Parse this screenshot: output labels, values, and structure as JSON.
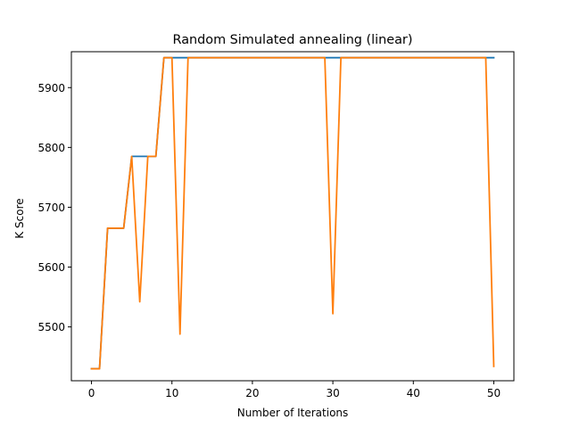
{
  "chart_data": {
    "type": "line",
    "title": "Random Simulated annealing (linear)",
    "xlabel": "Number of Iterations",
    "ylabel": "K Score",
    "xlim": [
      -2.5,
      52.5
    ],
    "ylim": [
      5410,
      5960
    ],
    "xticks": [
      0,
      10,
      20,
      30,
      40,
      50
    ],
    "yticks": [
      5500,
      5600,
      5700,
      5800,
      5900
    ],
    "grid": false,
    "legend": "none",
    "series": [
      {
        "color": "#1f77b4",
        "x": [
          0,
          1,
          2,
          3,
          4,
          5,
          6,
          7,
          8,
          9,
          10,
          11,
          12,
          13,
          14,
          15,
          16,
          17,
          18,
          19,
          20,
          21,
          22,
          23,
          24,
          25,
          26,
          27,
          28,
          29,
          30,
          31,
          32,
          33,
          34,
          35,
          36,
          37,
          38,
          39,
          40,
          41,
          42,
          43,
          44,
          45,
          46,
          47,
          48,
          49,
          50
        ],
        "y": [
          5430,
          5430,
          5665,
          5665,
          5665,
          5785,
          5785,
          5785,
          5785,
          5950,
          5950,
          5950,
          5950,
          5950,
          5950,
          5950,
          5950,
          5950,
          5950,
          5950,
          5950,
          5950,
          5950,
          5950,
          5950,
          5950,
          5950,
          5950,
          5950,
          5950,
          5950,
          5950,
          5950,
          5950,
          5950,
          5950,
          5950,
          5950,
          5950,
          5950,
          5950,
          5950,
          5950,
          5950,
          5950,
          5950,
          5950,
          5950,
          5950,
          5950,
          5950
        ]
      },
      {
        "color": "#ff7f0e",
        "x": [
          0,
          1,
          2,
          3,
          4,
          5,
          6,
          7,
          8,
          9,
          10,
          11,
          12,
          13,
          14,
          15,
          16,
          17,
          18,
          19,
          20,
          21,
          22,
          23,
          24,
          25,
          26,
          27,
          28,
          29,
          30,
          31,
          32,
          33,
          34,
          35,
          36,
          37,
          38,
          39,
          40,
          41,
          42,
          43,
          44,
          45,
          46,
          47,
          48,
          49,
          50
        ],
        "y": [
          5430,
          5430,
          5665,
          5665,
          5665,
          5785,
          5542,
          5785,
          5785,
          5950,
          5950,
          5488,
          5950,
          5950,
          5950,
          5950,
          5950,
          5950,
          5950,
          5950,
          5950,
          5950,
          5950,
          5950,
          5950,
          5950,
          5950,
          5950,
          5950,
          5950,
          5522,
          5950,
          5950,
          5950,
          5950,
          5950,
          5950,
          5950,
          5950,
          5950,
          5950,
          5950,
          5950,
          5950,
          5950,
          5950,
          5950,
          5950,
          5950,
          5950,
          5434
        ]
      }
    ]
  }
}
